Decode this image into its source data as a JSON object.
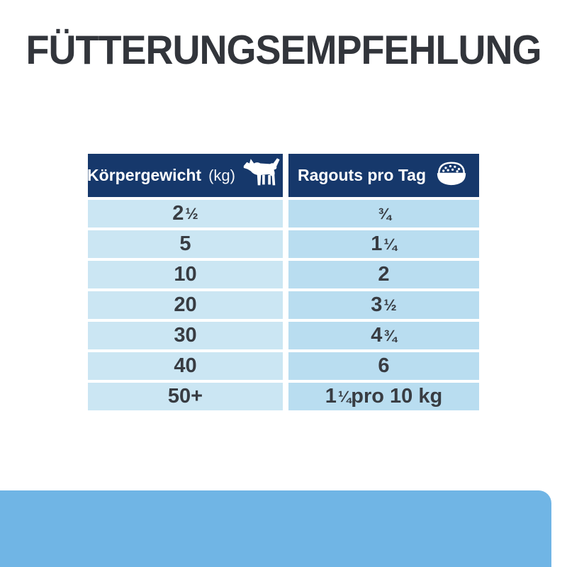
{
  "title": "FÜTTERUNGSEMPFEHLUNG",
  "table": {
    "columns": [
      {
        "label": "Körpergewicht",
        "unit": "(kg)",
        "icon": "dog-icon"
      },
      {
        "label": "Ragouts pro Tag",
        "icon": "food-bowl-icon"
      }
    ],
    "rows": [
      {
        "weight": "2 ½",
        "ragouts": "¾"
      },
      {
        "weight": "5",
        "ragouts": "1 ¼"
      },
      {
        "weight": "10",
        "ragouts": "2"
      },
      {
        "weight": "20",
        "ragouts": "3 ½"
      },
      {
        "weight": "30",
        "ragouts": "4 ¾"
      },
      {
        "weight": "40",
        "ragouts": "6"
      },
      {
        "weight": "50+",
        "ragouts": "1 ¼ pro 10 kg"
      }
    ]
  },
  "colors": {
    "title_text": "#32353b",
    "header_navy": "#16386b",
    "cell_left": "#cbe6f3",
    "cell_right": "#b9ddf0",
    "cell_text": "#383c42",
    "accent_band": "#70b5e5"
  }
}
